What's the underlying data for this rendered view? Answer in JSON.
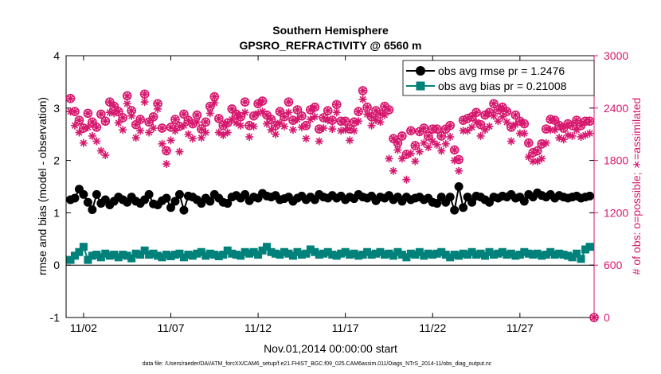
{
  "chart_data": {
    "type": "line",
    "title": "Southern Hemisphere",
    "subtitle": "GPSRO_REFRACTIVITY @ 6560 m",
    "xlabel": "Nov.01,2014 00:00:00 start",
    "ylabel": "rmse and bias (model - observation)",
    "y2label": "# of obs: o=possible; ∗=assimilated",
    "xlim": [
      0,
      121
    ],
    "ylim": [
      -1,
      4
    ],
    "y2lim": [
      0,
      3000
    ],
    "x_tick_values": [
      4,
      24,
      44,
      64,
      84,
      104
    ],
    "x_tick_labels": [
      "11/02",
      "11/07",
      "11/12",
      "11/17",
      "11/22",
      "11/27"
    ],
    "y_ticks": [
      -1,
      0,
      1,
      2,
      3,
      4
    ],
    "y2_ticks": [
      0,
      600,
      1200,
      1800,
      2400,
      3000
    ],
    "legend_position": "top-right",
    "colors": {
      "rmse": "#000000",
      "bias": "#00817a",
      "obs": "#d6186e"
    },
    "footnote": "data file: /Users/raeder/DAI/ATM_forcXX/CAM6_setup/f.e21.FHIST_BGC.f09_025.CAM6assim.011/Diags_NTrS_2014-11/obs_diag_output.nc",
    "series": [
      {
        "name": "obs avg rmse pr = 1.2476",
        "axis": "left",
        "marker": "filled-circle",
        "x": [
          1,
          2,
          3,
          4,
          5,
          6,
          7,
          8,
          9,
          10,
          11,
          12,
          13,
          14,
          15,
          16,
          17,
          18,
          19,
          20,
          21,
          22,
          23,
          24,
          25,
          26,
          27,
          28,
          29,
          30,
          31,
          32,
          33,
          34,
          35,
          36,
          37,
          38,
          39,
          40,
          41,
          42,
          43,
          44,
          45,
          46,
          47,
          48,
          49,
          50,
          51,
          52,
          53,
          54,
          55,
          56,
          57,
          58,
          59,
          60,
          61,
          62,
          63,
          64,
          65,
          66,
          67,
          68,
          69,
          70,
          71,
          72,
          73,
          74,
          75,
          76,
          77,
          78,
          79,
          80,
          81,
          82,
          83,
          84,
          85,
          86,
          87,
          88,
          89,
          90,
          91,
          92,
          93,
          94,
          95,
          96,
          97,
          98,
          99,
          100,
          101,
          102,
          103,
          104,
          105,
          106,
          107,
          108,
          109,
          110,
          111,
          112,
          113,
          114,
          115,
          116,
          117,
          118,
          119,
          120
        ],
        "values": [
          1.25,
          1.28,
          1.45,
          1.35,
          1.2,
          1.06,
          1.35,
          1.18,
          1.25,
          1.15,
          1.22,
          1.3,
          1.25,
          1.2,
          1.3,
          1.22,
          1.18,
          1.25,
          1.35,
          1.17,
          1.15,
          1.23,
          1.28,
          1.1,
          1.22,
          1.35,
          1.05,
          1.32,
          1.3,
          1.25,
          1.18,
          1.28,
          1.22,
          1.35,
          1.28,
          1.2,
          1.18,
          1.3,
          1.33,
          1.28,
          1.35,
          1.23,
          1.3,
          1.28,
          1.37,
          1.32,
          1.3,
          1.33,
          1.25,
          1.27,
          1.3,
          1.22,
          1.28,
          1.32,
          1.25,
          1.3,
          1.25,
          1.35,
          1.3,
          1.28,
          1.33,
          1.28,
          1.32,
          1.25,
          1.3,
          1.27,
          1.35,
          1.3,
          1.28,
          1.32,
          1.23,
          1.3,
          1.28,
          1.33,
          1.25,
          1.3,
          1.22,
          1.3,
          1.25,
          1.28,
          1.3,
          1.25,
          1.28,
          1.2,
          1.18,
          1.3,
          1.2,
          1.3,
          1.05,
          1.5,
          1.1,
          1.3,
          1.2,
          1.32,
          1.3,
          1.25,
          1.2,
          1.3,
          1.28,
          1.32,
          1.3,
          1.35,
          1.28,
          1.3,
          1.22,
          1.35,
          1.3,
          1.38,
          1.33,
          1.3,
          1.35,
          1.28,
          1.33,
          1.3,
          1.28,
          1.3,
          1.32,
          1.28,
          1.3,
          1.32
        ]
      },
      {
        "name": "obs avg bias pr = 0.21008",
        "axis": "left",
        "marker": "filled-square",
        "x": [
          1,
          2,
          3,
          4,
          5,
          6,
          7,
          8,
          9,
          10,
          11,
          12,
          13,
          14,
          15,
          16,
          17,
          18,
          19,
          20,
          21,
          22,
          23,
          24,
          25,
          26,
          27,
          28,
          29,
          30,
          31,
          32,
          33,
          34,
          35,
          36,
          37,
          38,
          39,
          40,
          41,
          42,
          43,
          44,
          45,
          46,
          47,
          48,
          49,
          50,
          51,
          52,
          53,
          54,
          55,
          56,
          57,
          58,
          59,
          60,
          61,
          62,
          63,
          64,
          65,
          66,
          67,
          68,
          69,
          70,
          71,
          72,
          73,
          74,
          75,
          76,
          77,
          78,
          79,
          80,
          81,
          82,
          83,
          84,
          85,
          86,
          87,
          88,
          89,
          90,
          91,
          92,
          93,
          94,
          95,
          96,
          97,
          98,
          99,
          100,
          101,
          102,
          103,
          104,
          105,
          106,
          107,
          108,
          109,
          110,
          111,
          112,
          113,
          114,
          115,
          116,
          117,
          118,
          119,
          120
        ],
        "values": [
          0.1,
          0.18,
          0.25,
          0.35,
          0.1,
          0.18,
          0.2,
          0.15,
          0.22,
          0.18,
          0.2,
          0.15,
          0.2,
          0.18,
          0.13,
          0.22,
          0.2,
          0.28,
          0.2,
          0.22,
          0.18,
          0.15,
          0.2,
          0.17,
          0.2,
          0.22,
          0.15,
          0.2,
          0.18,
          0.22,
          0.25,
          0.18,
          0.22,
          0.2,
          0.17,
          0.2,
          0.28,
          0.22,
          0.2,
          0.18,
          0.25,
          0.22,
          0.25,
          0.2,
          0.28,
          0.35,
          0.25,
          0.22,
          0.2,
          0.25,
          0.22,
          0.18,
          0.25,
          0.2,
          0.22,
          0.3,
          0.25,
          0.2,
          0.22,
          0.25,
          0.2,
          0.18,
          0.22,
          0.25,
          0.2,
          0.22,
          0.18,
          0.2,
          0.25,
          0.2,
          0.22,
          0.25,
          0.2,
          0.22,
          0.18,
          0.25,
          0.2,
          0.15,
          0.22,
          0.2,
          0.25,
          0.18,
          0.22,
          0.2,
          0.22,
          0.25,
          0.2,
          0.15,
          0.2,
          0.18,
          0.22,
          0.2,
          0.25,
          0.2,
          0.22,
          0.18,
          0.25,
          0.2,
          0.22,
          0.25,
          0.2,
          0.22,
          0.18,
          0.2,
          0.25,
          0.22,
          0.2,
          0.22,
          0.18,
          0.2,
          0.25,
          0.2,
          0.22,
          0.2,
          0.18,
          0.15,
          0.22,
          0.12,
          0.3,
          0.35
        ]
      },
      {
        "name": "possible",
        "axis": "right",
        "marker": "open-circle",
        "in_legend": false,
        "x": [
          1,
          2,
          3,
          4,
          5,
          6,
          7,
          8,
          9,
          10,
          11,
          12,
          13,
          14,
          15,
          16,
          17,
          18,
          19,
          20,
          21,
          22,
          23,
          24,
          25,
          26,
          27,
          28,
          29,
          30,
          31,
          32,
          33,
          34,
          35,
          36,
          37,
          38,
          39,
          40,
          41,
          42,
          43,
          44,
          45,
          46,
          47,
          48,
          49,
          50,
          51,
          52,
          53,
          54,
          55,
          56,
          57,
          58,
          59,
          60,
          61,
          62,
          63,
          64,
          65,
          66,
          67,
          68,
          69,
          70,
          71,
          72,
          73,
          74,
          75,
          76,
          77,
          78,
          79,
          80,
          81,
          82,
          83,
          84,
          85,
          86,
          87,
          88,
          89,
          90,
          91,
          92,
          93,
          94,
          95,
          96,
          97,
          98,
          99,
          100,
          101,
          102,
          103,
          104,
          105,
          106,
          107,
          108,
          109,
          110,
          111,
          112,
          113,
          114,
          115,
          116,
          117,
          118,
          119,
          120
        ],
        "values": [
          2510,
          2360,
          2260,
          2170,
          2340,
          2240,
          2180,
          2330,
          2250,
          2470,
          2420,
          2360,
          2290,
          2540,
          2370,
          2210,
          2270,
          2560,
          2240,
          2300,
          2450,
          2170,
          1910,
          2180,
          2270,
          2190,
          2330,
          2260,
          2220,
          2320,
          2160,
          2240,
          2420,
          2530,
          2280,
          2200,
          2230,
          2390,
          2330,
          2300,
          2470,
          2200,
          2310,
          2450,
          2480,
          2320,
          2270,
          2200,
          2360,
          2300,
          2470,
          2260,
          2380,
          2310,
          2200,
          2380,
          2410,
          2160,
          2290,
          2370,
          2260,
          2440,
          2250,
          2250,
          2160,
          2240,
          2360,
          2600,
          2410,
          2300,
          2370,
          2330,
          2420,
          2380,
          2050,
          2000,
          2080,
          1870,
          2140,
          1970,
          2130,
          2170,
          2080,
          2160,
          2160,
          2080,
          2160,
          2200,
          1920,
          1810,
          2260,
          2280,
          2300,
          2350,
          2210,
          2320,
          2350,
          2450,
          2380,
          2410,
          2360,
          2180,
          2320,
          2250,
          2220,
          2000,
          1890,
          1910,
          1990,
          2160,
          2270,
          2260,
          2200,
          2170,
          2220,
          2200,
          2260,
          2200,
          2250,
          2250
        ]
      },
      {
        "name": "assimilated",
        "axis": "right",
        "marker": "asterisk",
        "in_legend": false,
        "x": [
          1,
          2,
          3,
          4,
          5,
          6,
          7,
          8,
          9,
          10,
          11,
          12,
          13,
          14,
          15,
          16,
          17,
          18,
          19,
          20,
          21,
          22,
          23,
          24,
          25,
          26,
          27,
          28,
          29,
          30,
          31,
          32,
          33,
          34,
          35,
          36,
          37,
          38,
          39,
          40,
          41,
          42,
          43,
          44,
          45,
          46,
          47,
          48,
          49,
          50,
          51,
          52,
          53,
          54,
          55,
          56,
          57,
          58,
          59,
          60,
          61,
          62,
          63,
          64,
          65,
          66,
          67,
          68,
          69,
          70,
          71,
          72,
          73,
          74,
          75,
          76,
          77,
          78,
          79,
          80,
          81,
          82,
          83,
          84,
          85,
          86,
          87,
          88,
          89,
          90,
          91,
          92,
          93,
          94,
          95,
          96,
          97,
          98,
          99,
          100,
          101,
          102,
          103,
          104,
          105,
          106,
          107,
          108,
          109,
          110,
          111,
          112,
          113,
          114,
          115,
          116,
          117,
          118,
          119,
          120
        ],
        "values": [
          2360,
          2200,
          2120,
          2000,
          2180,
          2080,
          2020,
          1910,
          1860,
          2350,
          2340,
          2230,
          2150,
          2450,
          2310,
          2060,
          2140,
          2470,
          2120,
          2170,
          2390,
          1990,
          1760,
          2030,
          2140,
          1900,
          2200,
          2100,
          2050,
          2240,
          2060,
          2120,
          2340,
          2460,
          2120,
          2090,
          2120,
          2270,
          2230,
          2200,
          2350,
          2070,
          2190,
          2340,
          2360,
          2220,
          2150,
          2100,
          2230,
          2190,
          2350,
          2150,
          2270,
          2180,
          2050,
          2270,
          2300,
          2020,
          2170,
          2260,
          2160,
          2350,
          2140,
          2150,
          2030,
          2140,
          2250,
          2500,
          2330,
          2200,
          2260,
          2240,
          2320,
          1820,
          1680,
          1920,
          1820,
          1580,
          1880,
          1790,
          1900,
          2000,
          1950,
          2020,
          1980,
          1910,
          1990,
          2070,
          1800,
          1680,
          2140,
          2140,
          2180,
          2240,
          2080,
          2150,
          2190,
          2310,
          2250,
          2300,
          2240,
          2020,
          2210,
          2110,
          2110,
          1840,
          1790,
          1790,
          1820,
          2000,
          2150,
          2150,
          2060,
          2040,
          2090,
          2080,
          2150,
          2070,
          2090,
          2110
        ]
      }
    ]
  }
}
